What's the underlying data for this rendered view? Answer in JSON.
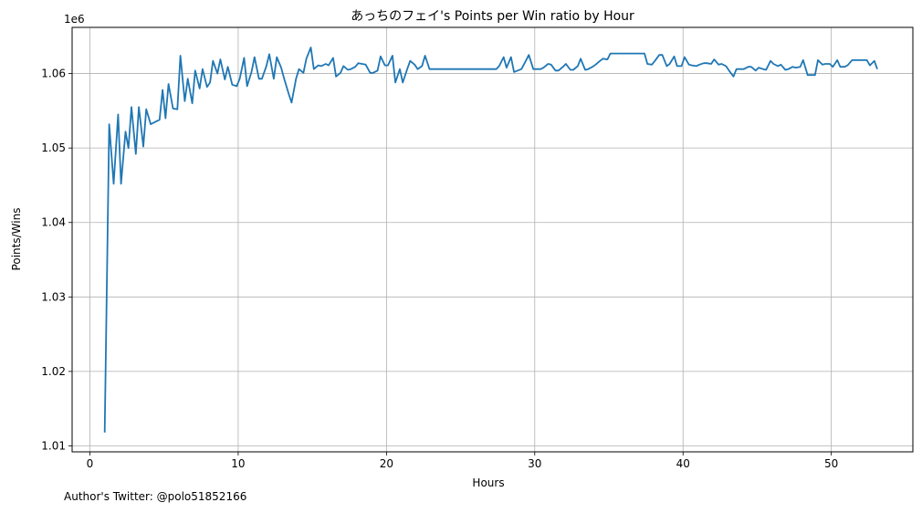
{
  "chart_data": {
    "type": "line",
    "title": "あっちのフェイ's Points per Win ratio by Hour",
    "xlabel": "Hours",
    "ylabel": "Points/Wins",
    "y_offset_label": "1e6",
    "xlim": [
      -1.2,
      55.5
    ],
    "ylim": [
      1.0092,
      1.0662
    ],
    "x_ticks": [
      0,
      10,
      20,
      30,
      40,
      50
    ],
    "y_ticks": [
      1.01,
      1.02,
      1.03,
      1.04,
      1.05,
      1.06
    ],
    "grid": true,
    "line_color": "#1f77b4",
    "series": [
      {
        "points": [
          [
            1.0,
            1.0118
          ],
          [
            1.3,
            1.0532
          ],
          [
            1.6,
            1.0452
          ],
          [
            1.9,
            1.0545
          ],
          [
            2.1,
            1.0452
          ],
          [
            2.4,
            1.0522
          ],
          [
            2.6,
            1.05
          ],
          [
            2.8,
            1.0555
          ],
          [
            3.1,
            1.0492
          ],
          [
            3.3,
            1.0555
          ],
          [
            3.6,
            1.0502
          ],
          [
            3.8,
            1.0552
          ],
          [
            4.1,
            1.0532
          ],
          [
            4.4,
            1.0535
          ],
          [
            4.7,
            1.0538
          ],
          [
            4.9,
            1.0578
          ],
          [
            5.1,
            1.054
          ],
          [
            5.3,
            1.0586
          ],
          [
            5.6,
            1.0553
          ],
          [
            5.9,
            1.0552
          ],
          [
            6.1,
            1.0624
          ],
          [
            6.4,
            1.0563
          ],
          [
            6.6,
            1.0593
          ],
          [
            6.9,
            1.056
          ],
          [
            7.1,
            1.0604
          ],
          [
            7.4,
            1.058
          ],
          [
            7.6,
            1.0606
          ],
          [
            7.9,
            1.0582
          ],
          [
            8.1,
            1.0588
          ],
          [
            8.3,
            1.0617
          ],
          [
            8.6,
            1.06
          ],
          [
            8.8,
            1.0619
          ],
          [
            9.1,
            1.0592
          ],
          [
            9.3,
            1.0609
          ],
          [
            9.6,
            1.0585
          ],
          [
            9.9,
            1.0583
          ],
          [
            10.1,
            1.0593
          ],
          [
            10.4,
            1.0621
          ],
          [
            10.6,
            1.0583
          ],
          [
            10.9,
            1.0602
          ],
          [
            11.1,
            1.0622
          ],
          [
            11.4,
            1.0593
          ],
          [
            11.6,
            1.0593
          ],
          [
            11.9,
            1.061
          ],
          [
            12.1,
            1.0626
          ],
          [
            12.4,
            1.0593
          ],
          [
            12.6,
            1.0622
          ],
          [
            12.9,
            1.0608
          ],
          [
            13.1,
            1.0593
          ],
          [
            13.4,
            1.0573
          ],
          [
            13.6,
            1.0561
          ],
          [
            13.9,
            1.0593
          ],
          [
            14.1,
            1.0606
          ],
          [
            14.4,
            1.0601
          ],
          [
            14.6,
            1.062
          ],
          [
            14.9,
            1.0635
          ],
          [
            15.1,
            1.0606
          ],
          [
            15.4,
            1.0611
          ],
          [
            15.6,
            1.061
          ],
          [
            15.9,
            1.0613
          ],
          [
            16.1,
            1.0611
          ],
          [
            16.4,
            1.0621
          ],
          [
            16.6,
            1.0596
          ],
          [
            16.9,
            1.0601
          ],
          [
            17.1,
            1.061
          ],
          [
            17.4,
            1.0605
          ],
          [
            17.6,
            1.0606
          ],
          [
            17.9,
            1.0609
          ],
          [
            18.1,
            1.0614
          ],
          [
            18.6,
            1.0612
          ],
          [
            18.9,
            1.0601
          ],
          [
            19.1,
            1.0601
          ],
          [
            19.4,
            1.0604
          ],
          [
            19.6,
            1.0623
          ],
          [
            19.9,
            1.0611
          ],
          [
            20.1,
            1.0611
          ],
          [
            20.4,
            1.0624
          ],
          [
            20.6,
            1.0588
          ],
          [
            20.9,
            1.0606
          ],
          [
            21.1,
            1.0588
          ],
          [
            21.4,
            1.0606
          ],
          [
            21.6,
            1.0617
          ],
          [
            21.9,
            1.0612
          ],
          [
            22.1,
            1.0606
          ],
          [
            22.4,
            1.061
          ],
          [
            22.6,
            1.0624
          ],
          [
            22.9,
            1.0606
          ],
          [
            27.4,
            1.0606
          ],
          [
            27.6,
            1.061
          ],
          [
            27.9,
            1.0622
          ],
          [
            28.1,
            1.0608
          ],
          [
            28.4,
            1.0622
          ],
          [
            28.6,
            1.0602
          ],
          [
            29.1,
            1.0606
          ],
          [
            29.4,
            1.0617
          ],
          [
            29.6,
            1.0625
          ],
          [
            29.9,
            1.0606
          ],
          [
            30.4,
            1.0606
          ],
          [
            30.6,
            1.0608
          ],
          [
            30.9,
            1.0613
          ],
          [
            31.1,
            1.0612
          ],
          [
            31.4,
            1.0604
          ],
          [
            31.6,
            1.0604
          ],
          [
            31.9,
            1.0609
          ],
          [
            32.1,
            1.0613
          ],
          [
            32.4,
            1.0605
          ],
          [
            32.6,
            1.0605
          ],
          [
            32.9,
            1.061
          ],
          [
            33.1,
            1.062
          ],
          [
            33.4,
            1.0605
          ],
          [
            33.6,
            1.0606
          ],
          [
            33.9,
            1.0609
          ],
          [
            34.1,
            1.0612
          ],
          [
            34.4,
            1.0617
          ],
          [
            34.6,
            1.062
          ],
          [
            34.9,
            1.0619
          ],
          [
            35.1,
            1.0627
          ],
          [
            37.4,
            1.0627
          ],
          [
            37.6,
            1.0613
          ],
          [
            37.9,
            1.0612
          ],
          [
            38.1,
            1.0617
          ],
          [
            38.4,
            1.0625
          ],
          [
            38.6,
            1.0625
          ],
          [
            38.9,
            1.061
          ],
          [
            39.1,
            1.0613
          ],
          [
            39.4,
            1.0623
          ],
          [
            39.6,
            1.061
          ],
          [
            39.9,
            1.061
          ],
          [
            40.1,
            1.0622
          ],
          [
            40.4,
            1.0612
          ],
          [
            40.6,
            1.0611
          ],
          [
            40.9,
            1.061
          ],
          [
            41.1,
            1.0612
          ],
          [
            41.4,
            1.0614
          ],
          [
            41.6,
            1.0614
          ],
          [
            41.9,
            1.0613
          ],
          [
            42.1,
            1.0619
          ],
          [
            42.4,
            1.0612
          ],
          [
            42.6,
            1.0613
          ],
          [
            42.9,
            1.061
          ],
          [
            43.1,
            1.0604
          ],
          [
            43.4,
            1.0596
          ],
          [
            43.6,
            1.0606
          ],
          [
            43.9,
            1.0606
          ],
          [
            44.1,
            1.0606
          ],
          [
            44.4,
            1.0609
          ],
          [
            44.6,
            1.0609
          ],
          [
            44.9,
            1.0604
          ],
          [
            45.1,
            1.0608
          ],
          [
            45.4,
            1.0606
          ],
          [
            45.6,
            1.0605
          ],
          [
            45.9,
            1.0617
          ],
          [
            46.1,
            1.0613
          ],
          [
            46.4,
            1.061
          ],
          [
            46.6,
            1.0612
          ],
          [
            46.9,
            1.0605
          ],
          [
            47.1,
            1.0606
          ],
          [
            47.4,
            1.0609
          ],
          [
            47.6,
            1.0608
          ],
          [
            47.9,
            1.0609
          ],
          [
            48.1,
            1.0618
          ],
          [
            48.4,
            1.0598
          ],
          [
            48.6,
            1.0598
          ],
          [
            48.9,
            1.0598
          ],
          [
            49.1,
            1.0618
          ],
          [
            49.4,
            1.0612
          ],
          [
            49.6,
            1.0613
          ],
          [
            49.9,
            1.0613
          ],
          [
            50.1,
            1.0609
          ],
          [
            50.4,
            1.0618
          ],
          [
            50.6,
            1.0609
          ],
          [
            50.9,
            1.0609
          ],
          [
            51.1,
            1.0611
          ],
          [
            51.4,
            1.0618
          ],
          [
            51.6,
            1.0618
          ],
          [
            51.9,
            1.0618
          ],
          [
            52.1,
            1.0618
          ],
          [
            52.4,
            1.0618
          ],
          [
            52.6,
            1.0611
          ],
          [
            52.9,
            1.0617
          ],
          [
            53.1,
            1.0606
          ]
        ]
      }
    ]
  },
  "footer_note": "Author's Twitter: @polo51852166"
}
